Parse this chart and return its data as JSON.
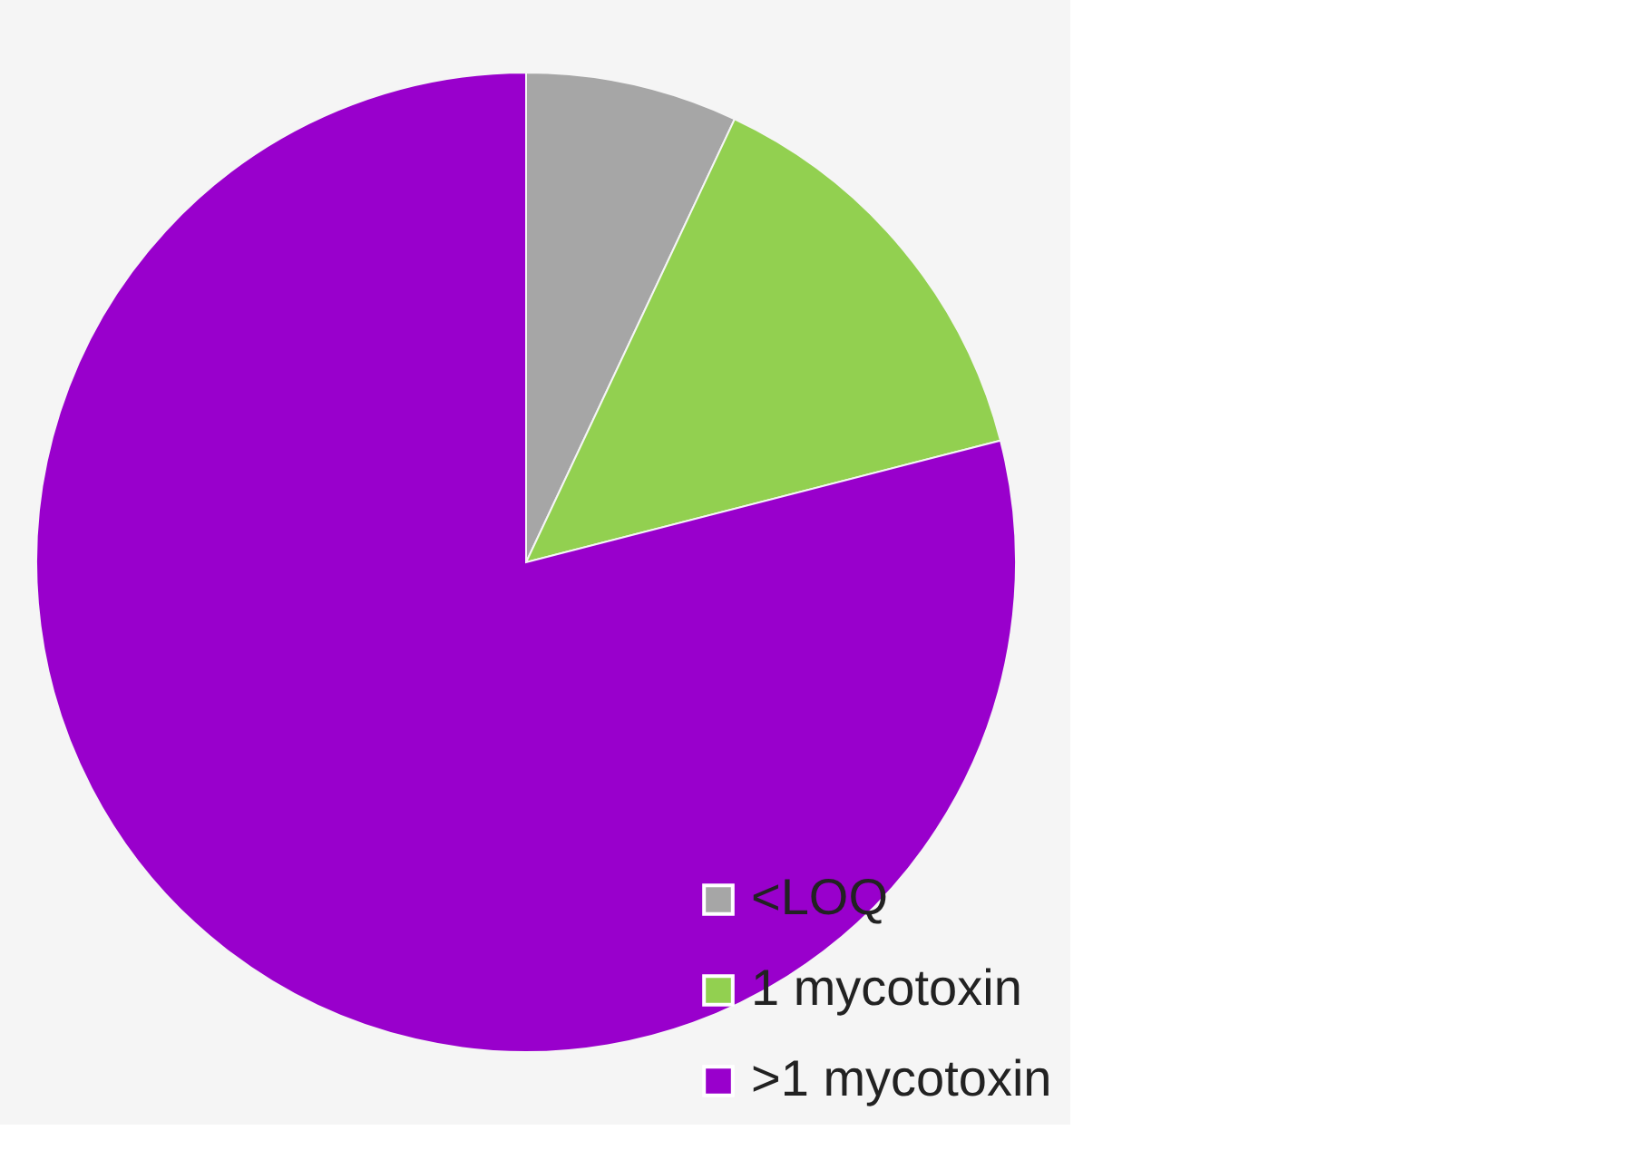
{
  "chart_data": {
    "type": "pie",
    "categories": [
      "<LOQ",
      "1 mycotoxin",
      ">1 mycotoxin"
    ],
    "values": [
      7,
      14,
      79
    ],
    "colors": [
      "#a6a6a6",
      "#92d050",
      "#9900cc"
    ],
    "legend": "bottom right"
  }
}
